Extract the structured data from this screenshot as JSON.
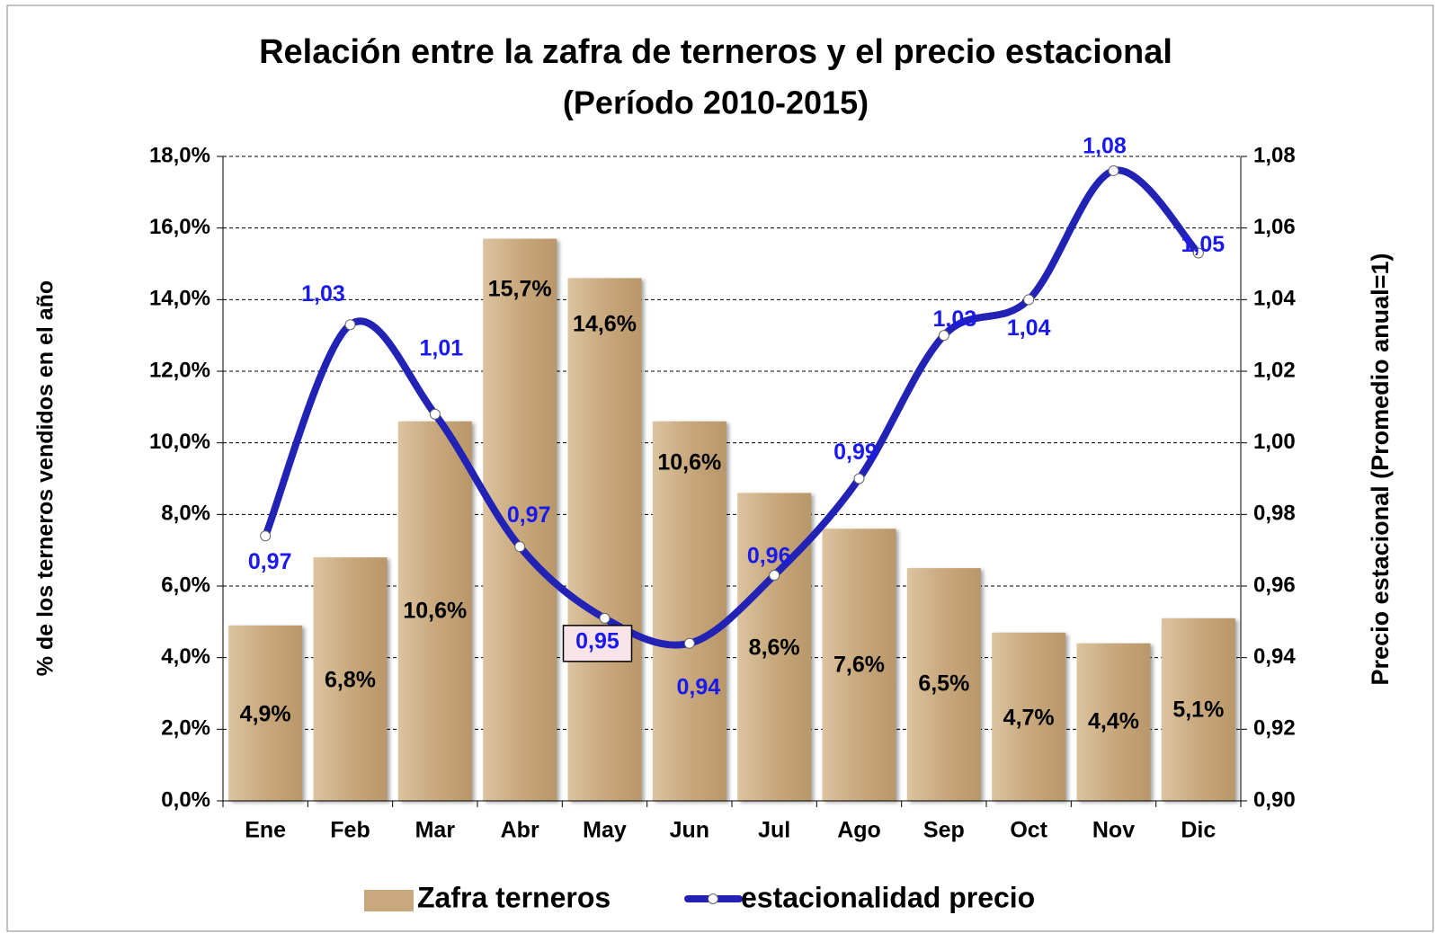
{
  "chart_data": {
    "type": "bar-line",
    "title": "Relación entre la zafra de terneros y el precio estacional",
    "subtitle": "(Período 2010-2015)",
    "y_label": "% de los terneros vendidos en el año",
    "y2_label": "Precio estacional (Promedio anual=1)",
    "categories": [
      "Ene",
      "Feb",
      "Mar",
      "Abr",
      "May",
      "Jun",
      "Jul",
      "Ago",
      "Sep",
      "Oct",
      "Nov",
      "Dic"
    ],
    "series": [
      {
        "name": "Zafra terneros",
        "type": "bar",
        "color": "#c8a87c",
        "values": [
          4.9,
          6.8,
          10.6,
          15.7,
          14.6,
          10.6,
          8.6,
          7.6,
          6.5,
          4.7,
          4.4,
          5.1
        ],
        "value_labels": [
          "4,9%",
          "6,8%",
          "10,6%",
          "15,7%",
          "14,6%",
          "10,6%",
          "8,6%",
          "7,6%",
          "6,5%",
          "4,7%",
          "4,4%",
          "5,1%"
        ]
      },
      {
        "name": "estacionalidad precio",
        "type": "line",
        "axis": "y2",
        "color": "#2222b4",
        "values": [
          0.974,
          1.033,
          1.008,
          0.971,
          0.951,
          0.944,
          0.963,
          0.99,
          1.03,
          1.04,
          1.076,
          1.053
        ],
        "value_labels": [
          "0,97",
          "1,03",
          "1,01",
          "0,97",
          "0,95",
          "0,94",
          "0,96",
          "0,99",
          "1,03",
          "1,04",
          "1,08",
          "1,05"
        ]
      }
    ],
    "ylim": [
      0,
      18
    ],
    "yticks": [
      {
        "value": 0,
        "label": "0,0%"
      },
      {
        "value": 2,
        "label": "2,0%"
      },
      {
        "value": 4,
        "label": "4,0%"
      },
      {
        "value": 6,
        "label": "6,0%"
      },
      {
        "value": 8,
        "label": "8,0%"
      },
      {
        "value": 10,
        "label": "10,0%"
      },
      {
        "value": 12,
        "label": "12,0%"
      },
      {
        "value": 14,
        "label": "14,0%"
      },
      {
        "value": 16,
        "label": "16,0%"
      },
      {
        "value": 18,
        "label": "18,0%"
      }
    ],
    "y2lim": [
      0.9,
      1.08
    ],
    "y2ticks": [
      {
        "value": 0.9,
        "label": "0,90"
      },
      {
        "value": 0.92,
        "label": "0,92"
      },
      {
        "value": 0.94,
        "label": "0,94"
      },
      {
        "value": 0.96,
        "label": "0,96"
      },
      {
        "value": 0.98,
        "label": "0,98"
      },
      {
        "value": 1.0,
        "label": "1,00"
      },
      {
        "value": 1.02,
        "label": "1,02"
      },
      {
        "value": 1.04,
        "label": "1,04"
      },
      {
        "value": 1.06,
        "label": "1,06"
      },
      {
        "value": 1.08,
        "label": "1,08"
      }
    ],
    "grid": true,
    "legend": "bottom"
  }
}
